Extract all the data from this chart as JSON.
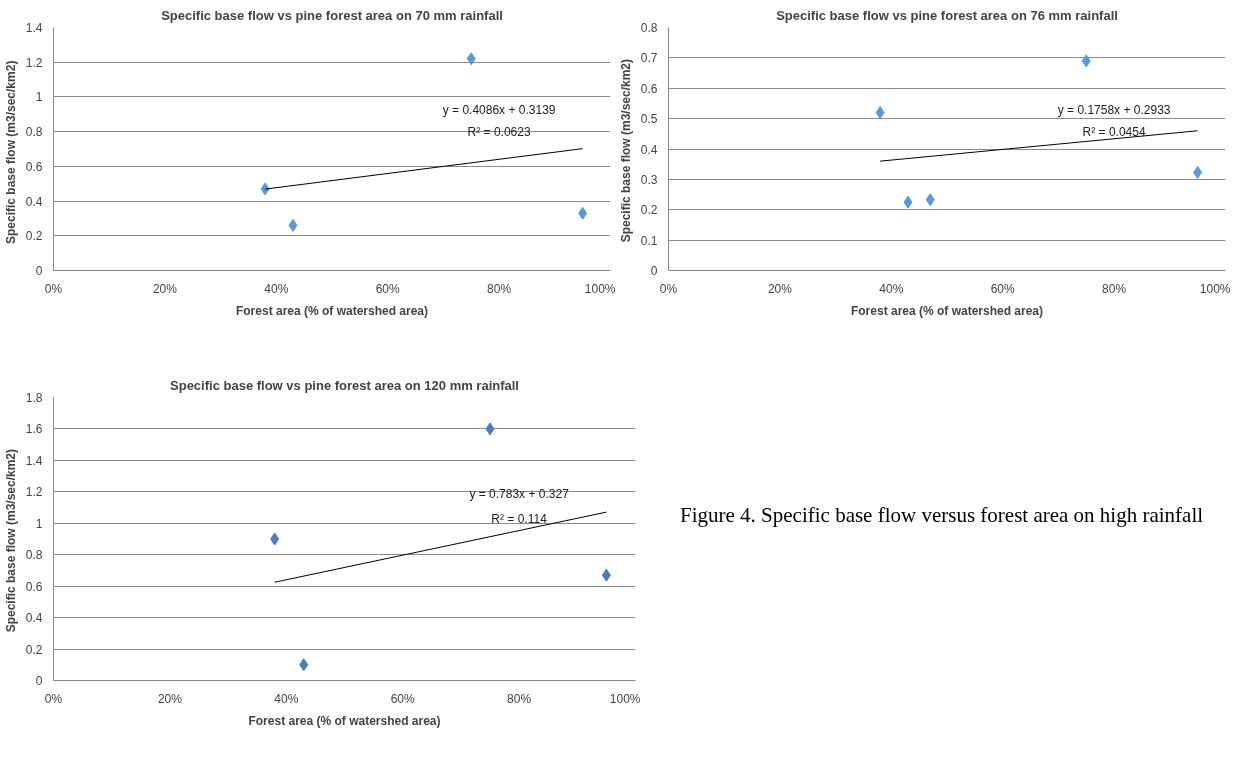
{
  "chart_data": [
    {
      "type": "scatter",
      "title": "Specific base flow vs pine forest area on 70 mm rainfall",
      "xlabel": "Forest area (% of watershed area)",
      "ylabel": "Specific base flow   (m3/sec/km2)",
      "grid": "y",
      "xlim": [
        0,
        1
      ],
      "xticks": [
        {
          "value": 0,
          "label": "0%"
        },
        {
          "value": 0.2,
          "label": "20%"
        },
        {
          "value": 0.4,
          "label": "40%"
        },
        {
          "value": 0.6,
          "label": "60%"
        },
        {
          "value": 0.8,
          "label": "80%"
        },
        {
          "value": 1,
          "label": "100%"
        }
      ],
      "ylim": [
        0,
        1.4
      ],
      "yticks": [
        0,
        0.2,
        0.4,
        0.6,
        0.8,
        1,
        1.2,
        1.4
      ],
      "series": [
        {
          "marker": "diamond",
          "color": "#5b9bd5",
          "x": [
            0.38,
            0.43,
            0.75,
            0.95
          ],
          "values": [
            0.47,
            0.26,
            1.22,
            0.33
          ]
        },
        {
          "type": "line",
          "marker": "none",
          "color": "#000000",
          "x": [
            0.38,
            0.95
          ],
          "values": [
            0.469,
            0.702
          ]
        }
      ],
      "annotations": [
        "y = 0.4086x + 0.3139",
        "R² = 0.0623"
      ]
    },
    {
      "type": "scatter",
      "title": "Specific base flow vs pine forest area on 76 mm rainfall",
      "xlabel": "Forest area (% of watershed area)",
      "ylabel": "Specific base flow  (m3/sec/km2)",
      "grid": "y",
      "xlim": [
        0,
        1
      ],
      "xticks": [
        {
          "value": 0,
          "label": "0%"
        },
        {
          "value": 0.2,
          "label": "20%"
        },
        {
          "value": 0.4,
          "label": "40%"
        },
        {
          "value": 0.6,
          "label": "60%"
        },
        {
          "value": 0.8,
          "label": "80%"
        },
        {
          "value": 1,
          "label": "100%"
        }
      ],
      "ylim": [
        0,
        0.8
      ],
      "yticks": [
        0,
        0.1,
        0.2,
        0.3,
        0.4,
        0.5,
        0.6,
        0.7,
        0.8
      ],
      "series": [
        {
          "marker": "diamond",
          "color": "#5b9bd5",
          "x": [
            0.38,
            0.43,
            0.47,
            0.75,
            0.95
          ],
          "values": [
            0.52,
            0.225,
            0.233,
            0.69,
            0.323
          ]
        },
        {
          "type": "line",
          "marker": "none",
          "color": "#000000",
          "x": [
            0.38,
            0.95
          ],
          "values": [
            0.36,
            0.46
          ]
        }
      ],
      "annotations": [
        "y = 0.1758x + 0.2933",
        "R² = 0.0454"
      ]
    },
    {
      "type": "scatter",
      "title": "Specific base flow vs pine forest area on 120 mm rainfall",
      "xlabel": "Forest area (% of watershed area)",
      "ylabel": "Specific base flow  (m3/sec/km2)",
      "grid": "y",
      "xlim": [
        0,
        1
      ],
      "xticks": [
        {
          "value": 0,
          "label": "0%"
        },
        {
          "value": 0.2,
          "label": "20%"
        },
        {
          "value": 0.4,
          "label": "40%"
        },
        {
          "value": 0.6,
          "label": "60%"
        },
        {
          "value": 0.8,
          "label": "80%"
        },
        {
          "value": 1,
          "label": "100%"
        }
      ],
      "ylim": [
        0,
        1.8
      ],
      "yticks": [
        0,
        0.2,
        0.4,
        0.6,
        0.8,
        1,
        1.2,
        1.4,
        1.6,
        1.8
      ],
      "series": [
        {
          "marker": "diamond",
          "color": "#4a7ebb",
          "x": [
            0.38,
            0.43,
            0.75,
            0.95
          ],
          "values": [
            0.9,
            0.1,
            1.6,
            0.67
          ]
        },
        {
          "type": "line",
          "marker": "none",
          "color": "#000000",
          "x": [
            0.38,
            0.95
          ],
          "values": [
            0.625,
            1.071
          ]
        }
      ],
      "annotations": [
        "y = 0.783x + 0.327",
        "R² = 0.114"
      ]
    },
    {
      "type": "other",
      "annotations": [
        "Figure 4. Specific base flow versus forest area on high rainfall"
      ]
    }
  ]
}
